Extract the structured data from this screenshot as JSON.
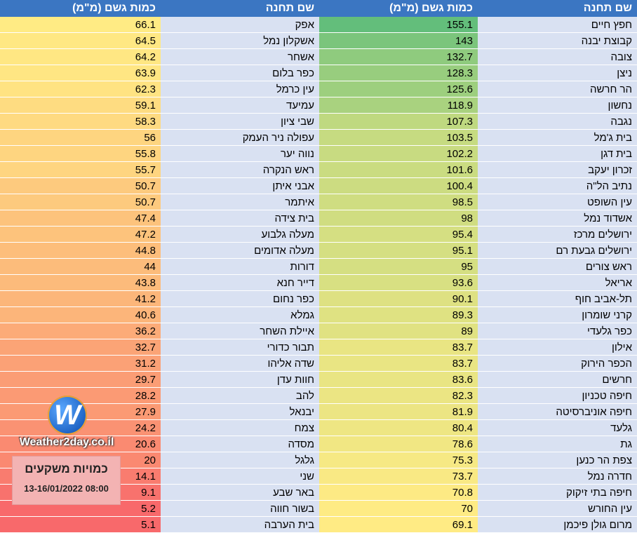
{
  "headers": {
    "station_name": "שם תחנה",
    "rain_amount": "כמות גשם (מ\"מ)"
  },
  "colors": {
    "header_bg": "#3b76c2",
    "name_bg": "#d9e1f2",
    "scale_high": "#63be7b",
    "scale_mid": "#ffeb84",
    "scale_low": "#f8696b"
  },
  "right_table": [
    {
      "name": "חפץ חיים",
      "value": "155.1"
    },
    {
      "name": "קבוצת יבנה",
      "value": "143"
    },
    {
      "name": "צובה",
      "value": "132.7"
    },
    {
      "name": "ניצן",
      "value": "128.3"
    },
    {
      "name": "הר חרשה",
      "value": "125.6"
    },
    {
      "name": "נחשון",
      "value": "118.9"
    },
    {
      "name": "נגבה",
      "value": "107.3"
    },
    {
      "name": "בית ג'מל",
      "value": "103.5"
    },
    {
      "name": "בית דגן",
      "value": "102.2"
    },
    {
      "name": "זכרון יעקב",
      "value": "101.6"
    },
    {
      "name": "נתיב הל\"ה",
      "value": "100.4"
    },
    {
      "name": "עין השופט",
      "value": "98.5"
    },
    {
      "name": "אשדוד נמל",
      "value": "98"
    },
    {
      "name": "ירושלים מרכז",
      "value": "95.4"
    },
    {
      "name": "ירושלים גבעת רם",
      "value": "95.1"
    },
    {
      "name": "ראש צורים",
      "value": "95"
    },
    {
      "name": "אריאל",
      "value": "93.6"
    },
    {
      "name": "תל-אביב חוף",
      "value": "90.1"
    },
    {
      "name": "קרני שומרון",
      "value": "89.3"
    },
    {
      "name": "כפר גלעדי",
      "value": "89"
    },
    {
      "name": "אילון",
      "value": "83.7"
    },
    {
      "name": "הכפר הירוק",
      "value": "83.7"
    },
    {
      "name": "חרשים",
      "value": "83.6"
    },
    {
      "name": "חיפה טכניון",
      "value": "82.3"
    },
    {
      "name": "חיפה אוניברסיטה",
      "value": "81.9"
    },
    {
      "name": "גלעד",
      "value": "80.4"
    },
    {
      "name": "גת",
      "value": "78.6"
    },
    {
      "name": "צפת הר כנען",
      "value": "75.3"
    },
    {
      "name": "חדרה נמל",
      "value": "73.7"
    },
    {
      "name": "חיפה בתי זיקוק",
      "value": "70.8"
    },
    {
      "name": "עין החורש",
      "value": "70"
    },
    {
      "name": "מרום גולן פיכמן",
      "value": "69.1"
    }
  ],
  "left_table": [
    {
      "name": "אפק",
      "value": "66.1"
    },
    {
      "name": "אשקלון נמל",
      "value": "64.5"
    },
    {
      "name": "אשחר",
      "value": "64.2"
    },
    {
      "name": "כפר בלום",
      "value": "63.9"
    },
    {
      "name": "עין כרמל",
      "value": "62.3"
    },
    {
      "name": "עמיעד",
      "value": "59.1"
    },
    {
      "name": "שבי ציון",
      "value": "58.3"
    },
    {
      "name": "עפולה ניר העמק",
      "value": "56"
    },
    {
      "name": "נווה יער",
      "value": "55.8"
    },
    {
      "name": "ראש הנקרה",
      "value": "55.7"
    },
    {
      "name": "אבני איתן",
      "value": "50.7"
    },
    {
      "name": "איתמר",
      "value": "50.7"
    },
    {
      "name": "בית צידה",
      "value": "47.4"
    },
    {
      "name": "מעלה גלבוע",
      "value": "47.2"
    },
    {
      "name": "מעלה אדומים",
      "value": "44.8"
    },
    {
      "name": "דורות",
      "value": "44"
    },
    {
      "name": "דייר חנא",
      "value": "43.8"
    },
    {
      "name": "כפר נחום",
      "value": "41.2"
    },
    {
      "name": "גמלא",
      "value": "40.6"
    },
    {
      "name": "איילת השחר",
      "value": "36.2"
    },
    {
      "name": "תבור כדורי",
      "value": "32.7"
    },
    {
      "name": "שדה אליהו",
      "value": "31.2"
    },
    {
      "name": "חוות עדן",
      "value": "29.7"
    },
    {
      "name": "להב",
      "value": "28.2"
    },
    {
      "name": "יבנאל",
      "value": "27.9"
    },
    {
      "name": "צמח",
      "value": "24.2"
    },
    {
      "name": "מסדה",
      "value": "20.6"
    },
    {
      "name": "גלגל",
      "value": "20"
    },
    {
      "name": "שני",
      "value": "14.1"
    },
    {
      "name": "באר שבע",
      "value": "9.1"
    },
    {
      "name": "בשור חווה",
      "value": "5.2"
    },
    {
      "name": "בית הערבה",
      "value": "5.1"
    }
  ],
  "logo": {
    "text": "Weather2day.co.il",
    "icon": "w-logo-icon"
  },
  "info_box": {
    "title": "כמויות משקעים",
    "date": "13-16/01/2022 08:00"
  }
}
